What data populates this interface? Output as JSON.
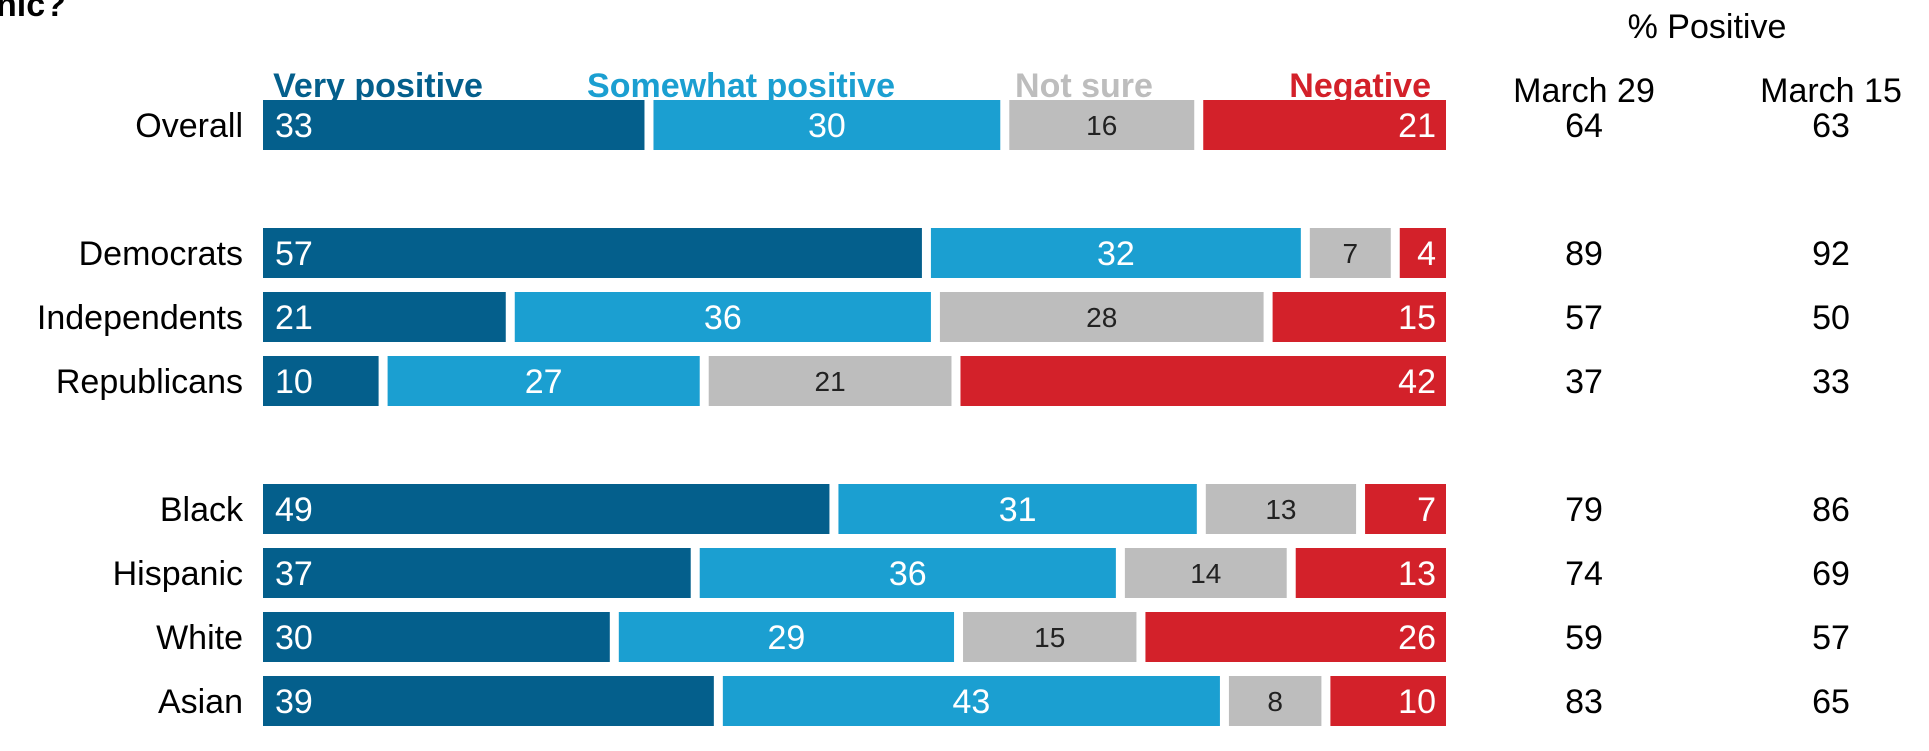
{
  "title_fragment": "nic?",
  "chart_data": {
    "type": "stacked-bar-horizontal",
    "legend": [
      {
        "label": "Very positive",
        "color": "#045f8c"
      },
      {
        "label": "Somewhat positive",
        "color": "#1b9fd1"
      },
      {
        "label": "Not sure",
        "color": "#bdbdbd"
      },
      {
        "label": "Negative",
        "color": "#d3212a"
      }
    ],
    "rows": [
      {
        "label": "Overall",
        "values": [
          33,
          30,
          16,
          21
        ],
        "march29": 64,
        "march15": 63
      },
      {
        "label": "Democrats",
        "values": [
          57,
          32,
          7,
          4
        ],
        "march29": 89,
        "march15": 92
      },
      {
        "label": "Independents",
        "values": [
          21,
          36,
          28,
          15
        ],
        "march29": 57,
        "march15": 50
      },
      {
        "label": "Republicans",
        "values": [
          10,
          27,
          21,
          42
        ],
        "march29": 37,
        "march15": 33
      },
      {
        "label": "Black",
        "values": [
          49,
          31,
          13,
          7
        ],
        "march29": 79,
        "march15": 86
      },
      {
        "label": "Hispanic",
        "values": [
          37,
          36,
          14,
          13
        ],
        "march29": 74,
        "march15": 69
      },
      {
        "label": "White",
        "values": [
          30,
          29,
          15,
          26
        ],
        "march29": 59,
        "march15": 57
      },
      {
        "label": "Asian",
        "values": [
          39,
          43,
          8,
          10
        ],
        "march29": 83,
        "march15": 65
      }
    ],
    "percent_positive_header": "% Positive",
    "columns": [
      "March 29",
      "March 15"
    ]
  }
}
